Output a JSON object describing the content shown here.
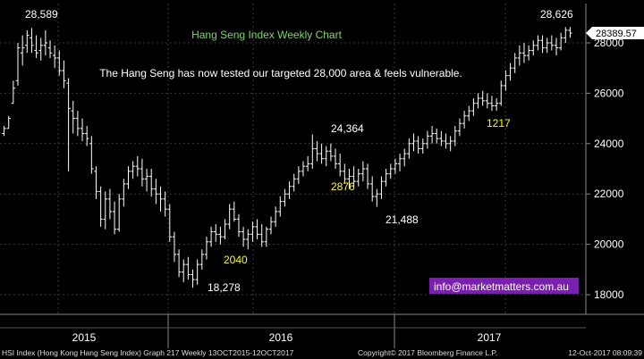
{
  "chart_data": {
    "type": "ohlc",
    "title": "Hang Seng Index Weekly Chart",
    "subtitle": "The Hang Seng has now tested our targeted 28,000 area & feels vulnerable.",
    "current_value_label": "28389.57",
    "current_value": 28389.57,
    "x_labels": [
      "2015",
      "2016",
      "2017"
    ],
    "y_ticks": [
      18000,
      20000,
      22000,
      24000,
      26000,
      28000
    ],
    "y_tick_labels": [
      "18000",
      "20000",
      "22000",
      "24000",
      "26000",
      "28000"
    ],
    "ylim": [
      17700,
      29200
    ],
    "grid": true,
    "annotations": [
      {
        "text": "28,589",
        "color": "#ffffff"
      },
      {
        "text": "28,626",
        "color": "#ffffff"
      },
      {
        "text": "24,364",
        "color": "#ffffff"
      },
      {
        "text": "21,488",
        "color": "#ffffff"
      },
      {
        "text": "18,278",
        "color": "#ffffff"
      },
      {
        "text": "2040",
        "color": "#ffff00"
      },
      {
        "text": "2876",
        "color": "#ffff00"
      },
      {
        "text": "1217",
        "color": "#ffff00"
      }
    ],
    "bars": [
      {
        "o": 24400,
        "h": 24700,
        "l": 24300,
        "c": 24600
      },
      {
        "o": 24600,
        "h": 25100,
        "l": 24600,
        "c": 25000
      },
      {
        "o": 25600,
        "h": 26500,
        "l": 25600,
        "c": 26200
      },
      {
        "o": 26500,
        "h": 28000,
        "l": 26300,
        "c": 27800
      },
      {
        "o": 27600,
        "h": 28300,
        "l": 27100,
        "c": 27800
      },
      {
        "o": 27900,
        "h": 28500,
        "l": 27600,
        "c": 28300
      },
      {
        "o": 28200,
        "h": 28589,
        "l": 27600,
        "c": 27900
      },
      {
        "o": 27700,
        "h": 28300,
        "l": 27400,
        "c": 27600
      },
      {
        "o": 27700,
        "h": 28200,
        "l": 27300,
        "c": 27900
      },
      {
        "o": 27900,
        "h": 28500,
        "l": 27500,
        "c": 28000
      },
      {
        "o": 27800,
        "h": 28100,
        "l": 27400,
        "c": 27600
      },
      {
        "o": 27500,
        "h": 27900,
        "l": 27000,
        "c": 27400
      },
      {
        "o": 27400,
        "h": 27700,
        "l": 26700,
        "c": 26900
      },
      {
        "o": 26900,
        "h": 27300,
        "l": 26200,
        "c": 26500
      },
      {
        "o": 26400,
        "h": 26600,
        "l": 22900,
        "c": 25400
      },
      {
        "o": 25300,
        "h": 25700,
        "l": 24400,
        "c": 25000
      },
      {
        "o": 25000,
        "h": 25300,
        "l": 24300,
        "c": 24600
      },
      {
        "o": 24600,
        "h": 25000,
        "l": 24100,
        "c": 24400
      },
      {
        "o": 24400,
        "h": 24700,
        "l": 23900,
        "c": 24200
      },
      {
        "o": 24000,
        "h": 24300,
        "l": 22800,
        "c": 23000
      },
      {
        "o": 22900,
        "h": 23100,
        "l": 21800,
        "c": 22100
      },
      {
        "o": 22100,
        "h": 22300,
        "l": 20700,
        "c": 21000
      },
      {
        "o": 21000,
        "h": 22100,
        "l": 20600,
        "c": 21800
      },
      {
        "o": 21800,
        "h": 22200,
        "l": 21000,
        "c": 21300
      },
      {
        "o": 21300,
        "h": 21700,
        "l": 20400,
        "c": 20600
      },
      {
        "o": 20600,
        "h": 22000,
        "l": 20500,
        "c": 21800
      },
      {
        "o": 21800,
        "h": 22600,
        "l": 21500,
        "c": 22400
      },
      {
        "o": 22400,
        "h": 23100,
        "l": 22200,
        "c": 22900
      },
      {
        "o": 22900,
        "h": 23300,
        "l": 22600,
        "c": 23100
      },
      {
        "o": 23100,
        "h": 23500,
        "l": 22700,
        "c": 23000
      },
      {
        "o": 23000,
        "h": 23400,
        "l": 22300,
        "c": 22600
      },
      {
        "o": 22600,
        "h": 23000,
        "l": 22100,
        "c": 22700
      },
      {
        "o": 22700,
        "h": 23000,
        "l": 21900,
        "c": 22200
      },
      {
        "o": 22200,
        "h": 22600,
        "l": 21600,
        "c": 22000
      },
      {
        "o": 22000,
        "h": 22300,
        "l": 21300,
        "c": 21800
      },
      {
        "o": 21800,
        "h": 22100,
        "l": 21100,
        "c": 21400
      },
      {
        "o": 21400,
        "h": 21600,
        "l": 20100,
        "c": 20300
      },
      {
        "o": 20300,
        "h": 20500,
        "l": 19300,
        "c": 19600
      },
      {
        "o": 19600,
        "h": 19800,
        "l": 18700,
        "c": 18900
      },
      {
        "o": 18900,
        "h": 19400,
        "l": 18500,
        "c": 19200
      },
      {
        "o": 19200,
        "h": 19500,
        "l": 18600,
        "c": 18800
      },
      {
        "o": 18800,
        "h": 19000,
        "l": 18278,
        "c": 18600
      },
      {
        "o": 18600,
        "h": 19400,
        "l": 18400,
        "c": 19200
      },
      {
        "o": 19200,
        "h": 19800,
        "l": 19000,
        "c": 19600
      },
      {
        "o": 19600,
        "h": 20300,
        "l": 19400,
        "c": 20100
      },
      {
        "o": 20100,
        "h": 20700,
        "l": 19900,
        "c": 20500
      },
      {
        "o": 20500,
        "h": 20800,
        "l": 20100,
        "c": 20400
      },
      {
        "o": 20400,
        "h": 20700,
        "l": 20000,
        "c": 20300
      },
      {
        "o": 20300,
        "h": 21000,
        "l": 20200,
        "c": 20800
      },
      {
        "o": 20800,
        "h": 21600,
        "l": 20600,
        "c": 21400
      },
      {
        "o": 21400,
        "h": 21700,
        "l": 20900,
        "c": 21000
      },
      {
        "o": 21000,
        "h": 21200,
        "l": 20300,
        "c": 20500
      },
      {
        "o": 20500,
        "h": 20700,
        "l": 19900,
        "c": 20200
      },
      {
        "o": 20200,
        "h": 20600,
        "l": 19800,
        "c": 20400
      },
      {
        "o": 20400,
        "h": 20900,
        "l": 20100,
        "c": 20700
      },
      {
        "o": 20700,
        "h": 21000,
        "l": 20200,
        "c": 20400
      },
      {
        "o": 20400,
        "h": 20800,
        "l": 19900,
        "c": 20100
      },
      {
        "o": 20100,
        "h": 20700,
        "l": 19900,
        "c": 20600
      },
      {
        "o": 20600,
        "h": 21100,
        "l": 20400,
        "c": 20900
      },
      {
        "o": 20900,
        "h": 21500,
        "l": 20700,
        "c": 21300
      },
      {
        "o": 21300,
        "h": 21900,
        "l": 21100,
        "c": 21700
      },
      {
        "o": 21700,
        "h": 22200,
        "l": 21500,
        "c": 22000
      },
      {
        "o": 22000,
        "h": 22500,
        "l": 21800,
        "c": 22300
      },
      {
        "o": 22300,
        "h": 22800,
        "l": 22100,
        "c": 22600
      },
      {
        "o": 22600,
        "h": 23100,
        "l": 22400,
        "c": 22900
      },
      {
        "o": 22900,
        "h": 23300,
        "l": 22700,
        "c": 23100
      },
      {
        "o": 23100,
        "h": 23500,
        "l": 22900,
        "c": 23200
      },
      {
        "o": 23200,
        "h": 24364,
        "l": 23000,
        "c": 23800
      },
      {
        "o": 23800,
        "h": 24100,
        "l": 23300,
        "c": 23600
      },
      {
        "o": 23600,
        "h": 24000,
        "l": 23200,
        "c": 23400
      },
      {
        "o": 23400,
        "h": 23900,
        "l": 23100,
        "c": 23700
      },
      {
        "o": 23700,
        "h": 24000,
        "l": 23300,
        "c": 23500
      },
      {
        "o": 23500,
        "h": 23800,
        "l": 23000,
        "c": 23200
      },
      {
        "o": 23200,
        "h": 23600,
        "l": 22700,
        "c": 22900
      },
      {
        "o": 22900,
        "h": 23200,
        "l": 22400,
        "c": 22600
      },
      {
        "o": 22600,
        "h": 23000,
        "l": 22200,
        "c": 22700
      },
      {
        "o": 22700,
        "h": 23100,
        "l": 22300,
        "c": 22500
      },
      {
        "o": 22500,
        "h": 23000,
        "l": 22300,
        "c": 22800
      },
      {
        "o": 22800,
        "h": 23300,
        "l": 22500,
        "c": 23000
      },
      {
        "o": 23000,
        "h": 23200,
        "l": 22200,
        "c": 22400
      },
      {
        "o": 22400,
        "h": 22700,
        "l": 21700,
        "c": 21900
      },
      {
        "o": 21900,
        "h": 22200,
        "l": 21488,
        "c": 22000
      },
      {
        "o": 22000,
        "h": 22700,
        "l": 21800,
        "c": 22500
      },
      {
        "o": 22500,
        "h": 23000,
        "l": 22300,
        "c": 22800
      },
      {
        "o": 22800,
        "h": 23200,
        "l": 22600,
        "c": 23000
      },
      {
        "o": 23000,
        "h": 23400,
        "l": 22800,
        "c": 23200
      },
      {
        "o": 23200,
        "h": 23600,
        "l": 22900,
        "c": 23400
      },
      {
        "o": 23400,
        "h": 23800,
        "l": 23100,
        "c": 23600
      },
      {
        "o": 23600,
        "h": 24200,
        "l": 23400,
        "c": 24000
      },
      {
        "o": 24000,
        "h": 24400,
        "l": 23700,
        "c": 24100
      },
      {
        "o": 24100,
        "h": 24300,
        "l": 23600,
        "c": 23800
      },
      {
        "o": 23800,
        "h": 24200,
        "l": 23600,
        "c": 24000
      },
      {
        "o": 24000,
        "h": 24500,
        "l": 23800,
        "c": 24300
      },
      {
        "o": 24300,
        "h": 24700,
        "l": 24000,
        "c": 24400
      },
      {
        "o": 24400,
        "h": 24600,
        "l": 24000,
        "c": 24200
      },
      {
        "o": 24200,
        "h": 24500,
        "l": 23900,
        "c": 24100
      },
      {
        "o": 24100,
        "h": 24400,
        "l": 23800,
        "c": 24000
      },
      {
        "o": 24000,
        "h": 24300,
        "l": 23700,
        "c": 24100
      },
      {
        "o": 24100,
        "h": 24700,
        "l": 23900,
        "c": 24500
      },
      {
        "o": 24500,
        "h": 25000,
        "l": 24300,
        "c": 24800
      },
      {
        "o": 24800,
        "h": 25300,
        "l": 24600,
        "c": 25100
      },
      {
        "o": 25100,
        "h": 25500,
        "l": 24900,
        "c": 25300
      },
      {
        "o": 25300,
        "h": 25800,
        "l": 25100,
        "c": 25600
      },
      {
        "o": 25600,
        "h": 26000,
        "l": 25400,
        "c": 25800
      },
      {
        "o": 25800,
        "h": 26100,
        "l": 25500,
        "c": 25700
      },
      {
        "o": 25700,
        "h": 26000,
        "l": 25400,
        "c": 25600
      },
      {
        "o": 25600,
        "h": 25900,
        "l": 25300,
        "c": 25500
      },
      {
        "o": 25500,
        "h": 25800,
        "l": 25300,
        "c": 25600
      },
      {
        "o": 25600,
        "h": 26500,
        "l": 25500,
        "c": 26300
      },
      {
        "o": 26300,
        "h": 26900,
        "l": 26100,
        "c": 26700
      },
      {
        "o": 26700,
        "h": 27200,
        "l": 26500,
        "c": 27000
      },
      {
        "o": 27000,
        "h": 27600,
        "l": 26800,
        "c": 27400
      },
      {
        "o": 27400,
        "h": 27900,
        "l": 27100,
        "c": 27600
      },
      {
        "o": 27600,
        "h": 28000,
        "l": 27200,
        "c": 27500
      },
      {
        "o": 27500,
        "h": 27900,
        "l": 27300,
        "c": 27700
      },
      {
        "o": 27700,
        "h": 28100,
        "l": 27500,
        "c": 27900
      },
      {
        "o": 27900,
        "h": 28300,
        "l": 27700,
        "c": 28100
      },
      {
        "o": 28100,
        "h": 28300,
        "l": 27600,
        "c": 27800
      },
      {
        "o": 27800,
        "h": 28200,
        "l": 27600,
        "c": 28000
      },
      {
        "o": 28000,
        "h": 28300,
        "l": 27700,
        "c": 27900
      },
      {
        "o": 27900,
        "h": 28200,
        "l": 27500,
        "c": 27800
      },
      {
        "o": 27800,
        "h": 28400,
        "l": 27700,
        "c": 28200
      },
      {
        "o": 28200,
        "h": 28626,
        "l": 28000,
        "c": 28500
      },
      {
        "o": 28500,
        "h": 28626,
        "l": 28200,
        "c": 28390
      }
    ]
  },
  "contact": "info@marketmatters.com.au",
  "footer": {
    "left": "HSI Index (Hong Kong Hang Seng Index) Graph 217  Weekly 13OCT2015-12OCT2017",
    "mid": "Copyright© 2017 Bloomberg Finance L.P.",
    "right": "12-Oct-2017 08:09:39"
  },
  "colors": {
    "background": "#000000",
    "grid": "#3a3a3a",
    "bars": "#ffffff",
    "title": "#7fd46a",
    "highlight": "#ffff00",
    "contact_bg": "#7a1fb0"
  }
}
